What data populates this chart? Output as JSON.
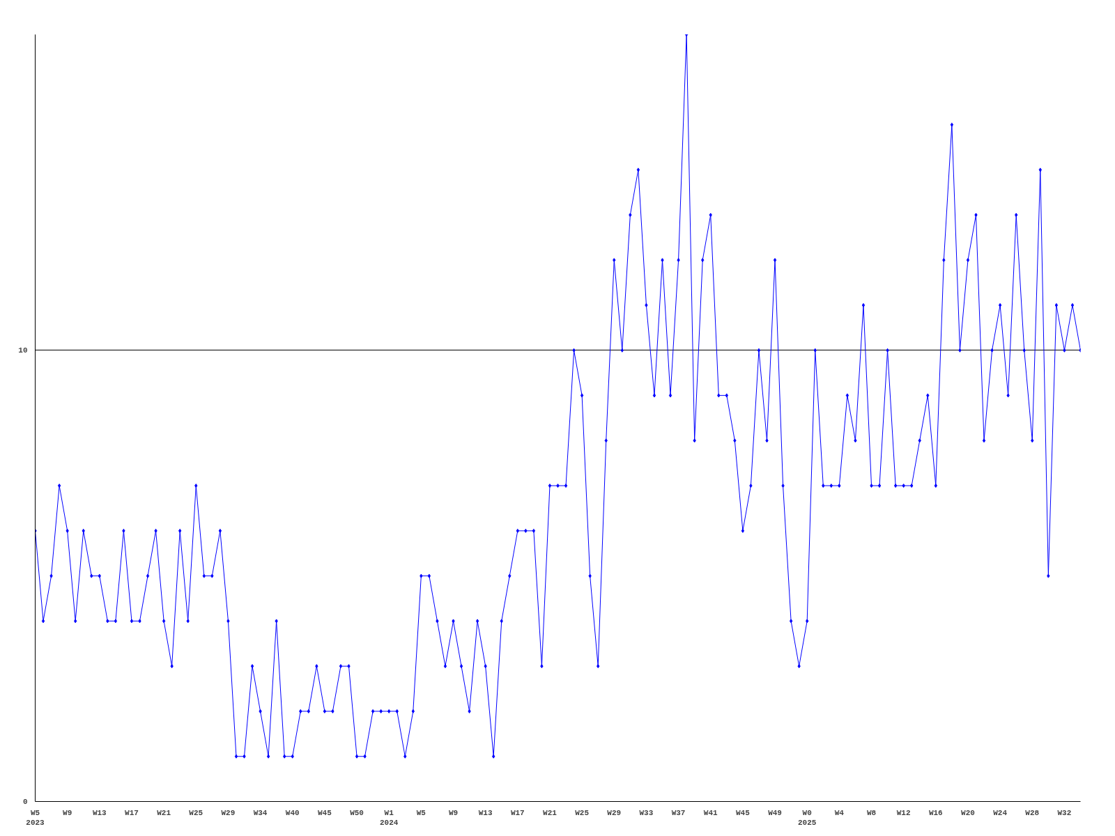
{
  "chart_data": {
    "type": "line",
    "categories": [
      "W5\n2023",
      null,
      null,
      null,
      "W9",
      null,
      null,
      null,
      "W13",
      null,
      null,
      null,
      "W17",
      null,
      null,
      null,
      "W21",
      null,
      null,
      null,
      "W25",
      null,
      null,
      null,
      "W29",
      null,
      null,
      null,
      "W34",
      null,
      null,
      null,
      "W40",
      null,
      null,
      null,
      "W45",
      null,
      null,
      null,
      "W50",
      null,
      null,
      null,
      "W1\n2024",
      null,
      null,
      null,
      "W5",
      null,
      null,
      null,
      "W9",
      null,
      null,
      null,
      "W13",
      null,
      null,
      null,
      "W17",
      null,
      null,
      null,
      "W21",
      null,
      null,
      null,
      "W25",
      null,
      null,
      null,
      "W29",
      null,
      null,
      null,
      "W33",
      null,
      null,
      null,
      "W37",
      null,
      null,
      null,
      "W41",
      null,
      null,
      null,
      "W45",
      null,
      null,
      null,
      "W49",
      null,
      null,
      null,
      "W0\n2025",
      null,
      null,
      null,
      "W4",
      null,
      null,
      null,
      "W8",
      null,
      null,
      null,
      "W12",
      null,
      null,
      null,
      "W16",
      null,
      null,
      null,
      "W20",
      null,
      null,
      null,
      "W24",
      null,
      null,
      null,
      "W28",
      null,
      null,
      null,
      "W32",
      null,
      null
    ],
    "series": [
      {
        "color": "#0000ff",
        "values": [
          6,
          4,
          5,
          7,
          6,
          4,
          6,
          5,
          5,
          4,
          4,
          6,
          4,
          4,
          5,
          6,
          4,
          3,
          6,
          4,
          7,
          5,
          5,
          6,
          4,
          1,
          1,
          3,
          2,
          1,
          4,
          1,
          1,
          2,
          2,
          3,
          2,
          2,
          3,
          3,
          1,
          1,
          2,
          2,
          2,
          2,
          1,
          2,
          5,
          5,
          4,
          3,
          4,
          3,
          2,
          4,
          3,
          1,
          4,
          5,
          6,
          6,
          6,
          3,
          7,
          7,
          7,
          10,
          9,
          5,
          3,
          8,
          12,
          10,
          13,
          14,
          11,
          9,
          12,
          9,
          12,
          17,
          8,
          12,
          13,
          9,
          9,
          8,
          6,
          7,
          10,
          8,
          12,
          7,
          4,
          3,
          4,
          10,
          7,
          7,
          7,
          9,
          8,
          11,
          7,
          7,
          10,
          7,
          7,
          7,
          8,
          9,
          7,
          12,
          15,
          10,
          12,
          13,
          8,
          10,
          11,
          9,
          13,
          10,
          8,
          14,
          5,
          11,
          10,
          11,
          10
        ]
      }
    ],
    "ylim": [
      0,
      17
    ],
    "yticks": [
      0,
      10
    ],
    "grid": "y",
    "marker": "diamond",
    "line_style": "solid"
  }
}
